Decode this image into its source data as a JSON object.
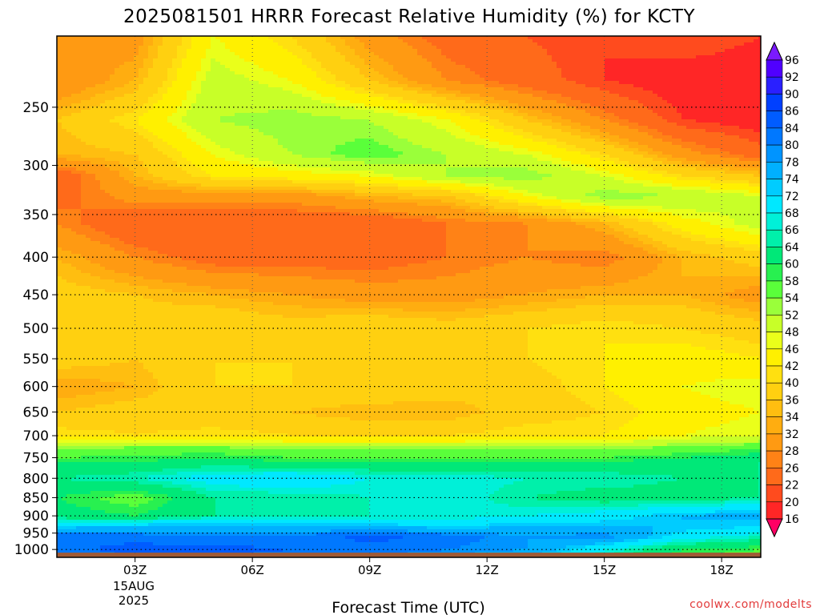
{
  "chart_data": {
    "type": "heatmap",
    "title": "2025081501 HRRR Forecast Relative Humidity (%) for KCTY",
    "xlabel": "Forecast Time (UTC)",
    "ylabel": "",
    "x_ticks": [
      "03Z",
      "06Z",
      "09Z",
      "12Z",
      "15Z",
      "18Z"
    ],
    "x_tick_hours": [
      3,
      6,
      9,
      12,
      15,
      18
    ],
    "xlim_hours": [
      1,
      19
    ],
    "date_label": [
      "15AUG",
      "2025"
    ],
    "y_ticks": [
      250,
      300,
      350,
      400,
      450,
      500,
      550,
      600,
      650,
      700,
      750,
      800,
      850,
      900,
      950,
      1000
    ],
    "ylim_hpa": [
      200,
      1025
    ],
    "y_scale": "log-pressure",
    "grid": true,
    "colorbar": {
      "levels": [
        16,
        20,
        22,
        26,
        28,
        32,
        34,
        36,
        40,
        42,
        46,
        48,
        52,
        54,
        58,
        60,
        64,
        66,
        68,
        72,
        74,
        78,
        80,
        84,
        86,
        90,
        92,
        96
      ],
      "colors": [
        "#ff0064",
        "#ff2626",
        "#ff4b1e",
        "#ff6a1a",
        "#ff8216",
        "#ff9a12",
        "#ffad10",
        "#ffbe10",
        "#ffd010",
        "#ffe010",
        "#fff000",
        "#eaff1a",
        "#c8ff28",
        "#9aff3a",
        "#5aff3a",
        "#28f050",
        "#00e878",
        "#00f0aa",
        "#00f0d8",
        "#00e8ff",
        "#00ccff",
        "#00b0ff",
        "#0094ff",
        "#0078ff",
        "#005cff",
        "#0040ff",
        "#2a20ff",
        "#5000ff",
        "#7a1aff"
      ],
      "extend": "both"
    },
    "rh_profile": {
      "pressure_hpa": [
        200,
        230,
        260,
        290,
        310,
        330,
        360,
        400,
        450,
        500,
        550,
        600,
        650,
        700,
        730,
        760,
        800,
        850,
        900,
        930,
        960,
        1000,
        1025
      ],
      "hours": [
        1,
        3,
        5,
        7,
        9,
        11,
        13,
        15,
        17,
        19
      ],
      "rh_percent": [
        [
          32,
          30,
          46,
          40,
          30,
          24,
          22,
          20,
          22,
          20
        ],
        [
          28,
          34,
          50,
          46,
          36,
          28,
          24,
          20,
          18,
          18
        ],
        [
          36,
          42,
          52,
          54,
          52,
          46,
          36,
          28,
          20,
          18
        ],
        [
          34,
          36,
          46,
          52,
          56,
          52,
          48,
          40,
          30,
          24
        ],
        [
          22,
          34,
          42,
          44,
          46,
          52,
          54,
          48,
          40,
          36
        ],
        [
          24,
          30,
          30,
          30,
          34,
          36,
          46,
          54,
          52,
          48
        ],
        [
          28,
          22,
          22,
          22,
          22,
          26,
          28,
          34,
          44,
          50
        ],
        [
          34,
          28,
          24,
          24,
          24,
          26,
          28,
          26,
          34,
          38
        ],
        [
          38,
          36,
          34,
          32,
          30,
          30,
          32,
          34,
          34,
          30
        ],
        [
          40,
          38,
          40,
          38,
          40,
          38,
          40,
          42,
          40,
          38
        ],
        [
          38,
          36,
          40,
          40,
          38,
          38,
          40,
          42,
          44,
          42
        ],
        [
          32,
          34,
          40,
          40,
          40,
          38,
          38,
          42,
          46,
          48
        ],
        [
          36,
          38,
          36,
          36,
          34,
          34,
          38,
          40,
          44,
          46
        ],
        [
          42,
          40,
          42,
          40,
          40,
          40,
          42,
          42,
          46,
          48
        ],
        [
          54,
          56,
          56,
          54,
          54,
          54,
          54,
          54,
          56,
          58
        ],
        [
          60,
          60,
          62,
          60,
          60,
          60,
          60,
          60,
          62,
          64
        ],
        [
          64,
          66,
          70,
          72,
          68,
          68,
          66,
          66,
          64,
          64
        ],
        [
          60,
          56,
          64,
          64,
          66,
          68,
          64,
          62,
          62,
          64
        ],
        [
          62,
          60,
          64,
          64,
          66,
          66,
          68,
          70,
          74,
          76
        ],
        [
          72,
          74,
          76,
          74,
          74,
          72,
          74,
          74,
          74,
          72
        ],
        [
          84,
          82,
          80,
          80,
          86,
          82,
          78,
          80,
          70,
          66
        ],
        [
          82,
          86,
          86,
          84,
          82,
          80,
          78,
          68,
          60,
          58
        ],
        [
          80,
          84,
          84,
          82,
          80,
          78,
          74,
          66,
          58,
          56
        ]
      ]
    }
  },
  "credit": "coolwx.com/modelts",
  "ground_color": "#a05a35"
}
